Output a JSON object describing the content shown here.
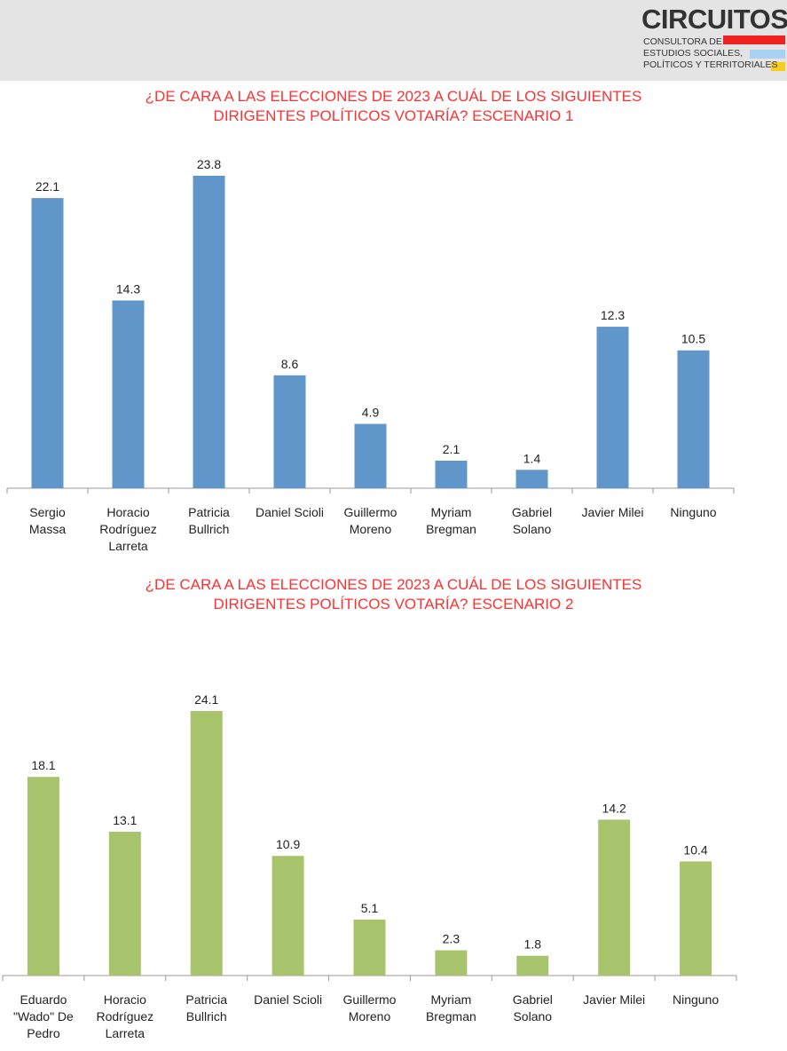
{
  "logo": {
    "name": "CIRCUITOS",
    "tagline_1": "CONSULTORA DE",
    "tagline_2": "ESTUDIOS SOCIALES,",
    "tagline_3": "POLÍTICOS Y TERRITORIALES",
    "colors": {
      "red": "#ee2222",
      "blue": "#a9d2f2",
      "yellow": "#f8cc1b"
    }
  },
  "chart_data": [
    {
      "type": "bar",
      "title": "¿DE CARA A LAS ELECCIONES DE 2023 A CUÁL DE LOS SIGUIENTES DIRIGENTES POLÍTICOS VOTARÍA? ESCENARIO 1",
      "title_line_1": "¿DE CARA A LAS ELECCIONES DE 2023 A CUÁL DE LOS SIGUIENTES",
      "title_line_2": "DIRIGENTES POLÍTICOS VOTARÍA? ESCENARIO 1",
      "categories": [
        [
          "Sergio",
          "Massa"
        ],
        [
          "Horacio",
          "Rodríguez",
          "Larreta"
        ],
        [
          "Patricia",
          "Bullrich"
        ],
        [
          "Daniel Scioli"
        ],
        [
          "Guillermo",
          "Moreno"
        ],
        [
          "Myriam",
          "Bregman"
        ],
        [
          "Gabriel",
          "Solano"
        ],
        [
          "Javier Milei"
        ],
        [
          "Ninguno"
        ]
      ],
      "values": [
        22.1,
        14.3,
        23.8,
        8.6,
        4.9,
        2.1,
        1.4,
        12.3,
        10.5
      ],
      "value_labels": [
        "22.1",
        "14.3",
        "23.8",
        "8.6",
        "4.9",
        "2.1",
        "1.4",
        "12.3",
        "10.5"
      ],
      "ylim": [
        0,
        23.8
      ],
      "bar_color": "#6096c9",
      "grid": false,
      "legend": "none"
    },
    {
      "type": "bar",
      "title": "¿DE CARA A LAS ELECCIONES DE 2023 A CUÁL DE LOS SIGUIENTES DIRIGENTES POLÍTICOS VOTARÍA? ESCENARIO 2",
      "title_line_1": "¿DE CARA A LAS ELECCIONES DE 2023 A CUÁL DE LOS SIGUIENTES",
      "title_line_2": "DIRIGENTES POLÍTICOS VOTARÍA? ESCENARIO 2",
      "categories": [
        [
          "Eduardo",
          "\"Wado\" De",
          "Pedro"
        ],
        [
          "Horacio",
          "Rodríguez",
          "Larreta"
        ],
        [
          "Patricia",
          "Bullrich"
        ],
        [
          "Daniel Scioli"
        ],
        [
          "Guillermo",
          "Moreno"
        ],
        [
          "Myriam",
          "Bregman"
        ],
        [
          "Gabriel",
          "Solano"
        ],
        [
          "Javier Milei"
        ],
        [
          "Ninguno"
        ]
      ],
      "values": [
        18.1,
        13.1,
        24.1,
        10.9,
        5.1,
        2.3,
        1.8,
        14.2,
        10.4
      ],
      "value_labels": [
        "18.1",
        "13.1",
        "24.1",
        "10.9",
        "5.1",
        "2.3",
        "1.8",
        "14.2",
        "10.4"
      ],
      "ylim": [
        0,
        24.1
      ],
      "bar_color": "#a7c46d",
      "grid": false,
      "legend": "none"
    }
  ]
}
